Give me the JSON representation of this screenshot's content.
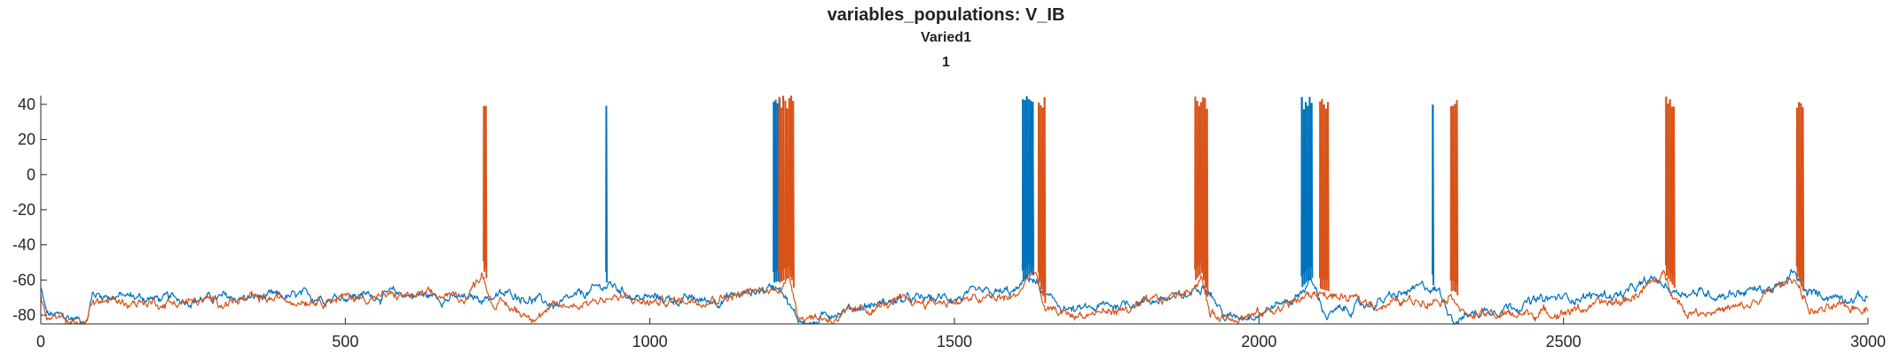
{
  "figure": {
    "title": "variables_populations: V_IB",
    "subtitle1": "Varied1",
    "subtitle2": "1"
  },
  "chart_data": {
    "type": "line",
    "title": "variables_populations: V_IB",
    "subtitle": [
      "Varied1",
      "1"
    ],
    "xlabel": "",
    "ylabel": "",
    "xlim": [
      0,
      3000
    ],
    "ylim": [
      -85,
      45
    ],
    "x_ticks": [
      0,
      500,
      1000,
      1500,
      2000,
      2500,
      3000
    ],
    "y_ticks": [
      -80,
      -60,
      -40,
      -20,
      0,
      20,
      40
    ],
    "x_tick_labels": [
      "0",
      "500",
      "1000",
      "1500",
      "2000",
      "2500",
      "3000"
    ],
    "y_tick_labels": [
      "-80",
      "-60",
      "-40",
      "-20",
      "0",
      "20",
      "40"
    ],
    "grid": false,
    "legend": "none",
    "series": [
      {
        "color": "#0072BD",
        "baseline": [
          [
            0,
            -65
          ],
          [
            10,
            -80
          ],
          [
            75,
            -83
          ],
          [
            85,
            -68
          ],
          [
            200,
            -71
          ],
          [
            400,
            -70
          ],
          [
            600,
            -68
          ],
          [
            700,
            -71
          ],
          [
            780,
            -68
          ],
          [
            850,
            -75
          ],
          [
            920,
            -64
          ],
          [
            935,
            -63
          ],
          [
            980,
            -70
          ],
          [
            1100,
            -72
          ],
          [
            1190,
            -65
          ],
          [
            1215,
            -62
          ],
          [
            1240,
            -82
          ],
          [
            1270,
            -85
          ],
          [
            1300,
            -78
          ],
          [
            1400,
            -72
          ],
          [
            1500,
            -70
          ],
          [
            1600,
            -67
          ],
          [
            1625,
            -58
          ],
          [
            1660,
            -73
          ],
          [
            1700,
            -78
          ],
          [
            1800,
            -72
          ],
          [
            1880,
            -70
          ],
          [
            1910,
            -60
          ],
          [
            1945,
            -82
          ],
          [
            2000,
            -78
          ],
          [
            2060,
            -70
          ],
          [
            2085,
            -60
          ],
          [
            2110,
            -80
          ],
          [
            2200,
            -72
          ],
          [
            2275,
            -64
          ],
          [
            2295,
            -66
          ],
          [
            2320,
            -82
          ],
          [
            2400,
            -75
          ],
          [
            2500,
            -70
          ],
          [
            2600,
            -68
          ],
          [
            2650,
            -60
          ],
          [
            2680,
            -66
          ],
          [
            2750,
            -68
          ],
          [
            2860,
            -64
          ],
          [
            2875,
            -56
          ],
          [
            2900,
            -68
          ],
          [
            3000,
            -70
          ]
        ],
        "spikes": [
          [
            928,
            1
          ],
          [
            1203,
            4
          ],
          [
            1612,
            6
          ],
          [
            1625,
            2
          ],
          [
            2070,
            6
          ],
          [
            2285,
            1
          ]
        ]
      },
      {
        "color": "#D95319",
        "baseline": [
          [
            0,
            -68
          ],
          [
            10,
            -82
          ],
          [
            75,
            -85
          ],
          [
            85,
            -72
          ],
          [
            200,
            -73
          ],
          [
            400,
            -71
          ],
          [
            600,
            -69
          ],
          [
            700,
            -70
          ],
          [
            725,
            -55
          ],
          [
            740,
            -72
          ],
          [
            800,
            -80
          ],
          [
            900,
            -72
          ],
          [
            935,
            -70
          ],
          [
            1000,
            -73
          ],
          [
            1100,
            -70
          ],
          [
            1200,
            -66
          ],
          [
            1230,
            -60
          ],
          [
            1245,
            -80
          ],
          [
            1300,
            -82
          ],
          [
            1400,
            -73
          ],
          [
            1500,
            -72
          ],
          [
            1600,
            -70
          ],
          [
            1630,
            -54
          ],
          [
            1650,
            -78
          ],
          [
            1700,
            -80
          ],
          [
            1800,
            -76
          ],
          [
            1885,
            -66
          ],
          [
            1905,
            -58
          ],
          [
            1920,
            -80
          ],
          [
            2000,
            -80
          ],
          [
            2060,
            -72
          ],
          [
            2100,
            -67
          ],
          [
            2130,
            -70
          ],
          [
            2200,
            -74
          ],
          [
            2300,
            -70
          ],
          [
            2320,
            -68
          ],
          [
            2340,
            -80
          ],
          [
            2400,
            -80
          ],
          [
            2500,
            -78
          ],
          [
            2600,
            -72
          ],
          [
            2665,
            -58
          ],
          [
            2680,
            -66
          ],
          [
            2700,
            -78
          ],
          [
            2800,
            -76
          ],
          [
            2880,
            -58
          ],
          [
            2905,
            -78
          ],
          [
            3000,
            -75
          ]
        ],
        "spikes": [
          [
            727,
            2
          ],
          [
            1212,
            3
          ],
          [
            1222,
            5
          ],
          [
            1638,
            4
          ],
          [
            1895,
            7
          ],
          [
            2100,
            5
          ],
          [
            2315,
            4
          ],
          [
            2668,
            5
          ],
          [
            2883,
            4
          ]
        ]
      }
    ],
    "spike_peak": 45
  }
}
